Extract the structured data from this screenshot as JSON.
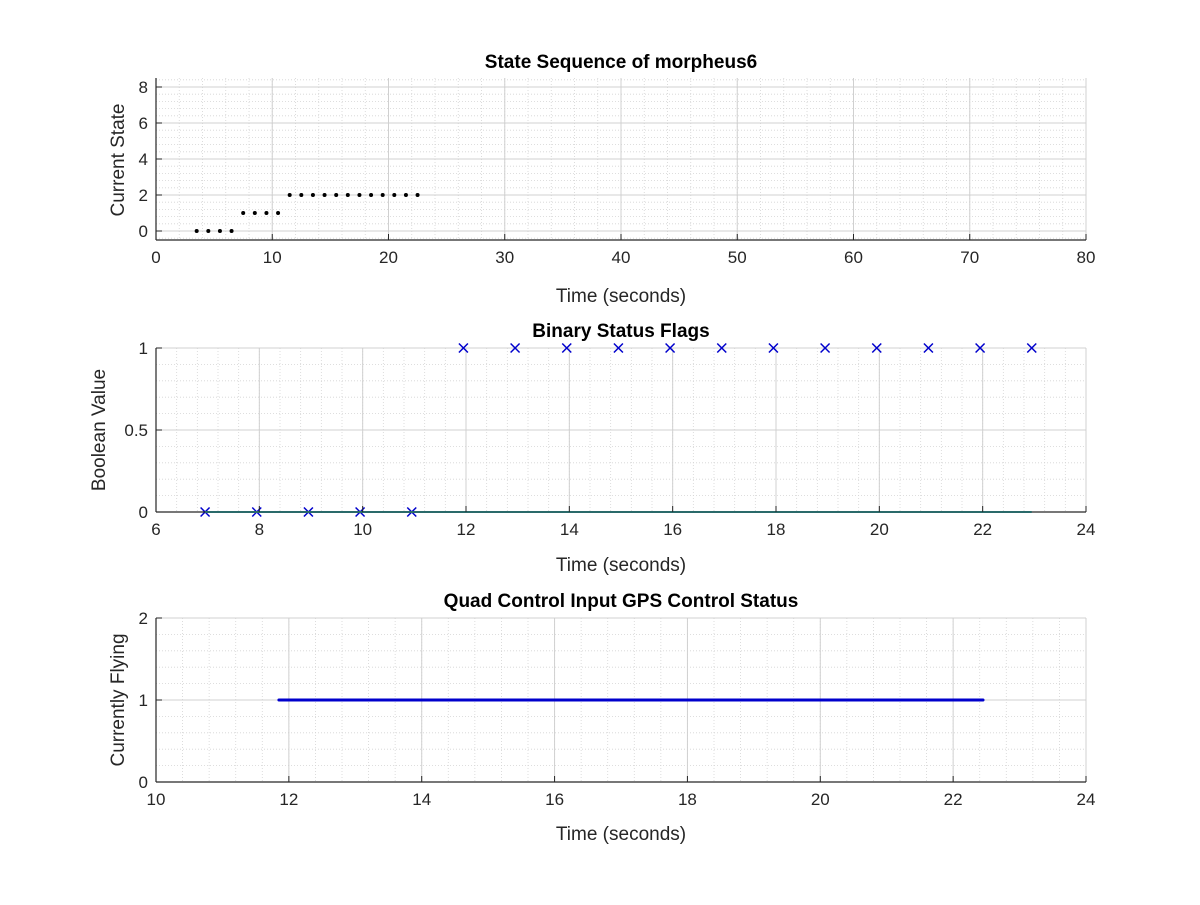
{
  "chart_data": [
    {
      "type": "scatter",
      "title": "State Sequence of morpheus6",
      "xlabel": "Time (seconds)",
      "ylabel": "Current State",
      "xlim": [
        0,
        80
      ],
      "ylim": [
        -0.5,
        8.5
      ],
      "xticks": [
        0,
        10,
        20,
        30,
        40,
        50,
        60,
        70,
        80
      ],
      "yticks": [
        0,
        2,
        4,
        6,
        8
      ],
      "xtick_labels": [
        "0",
        "10",
        "20",
        "30",
        "40",
        "50",
        "60",
        "70",
        "80"
      ],
      "ytick_labels": [
        "0",
        "2",
        "4",
        "6",
        "8"
      ],
      "grid": true,
      "minor_grid": true,
      "series": [
        {
          "marker": "dot",
          "color": "#000000",
          "x": [
            3.5,
            4.5,
            5.5,
            6.5,
            7.5,
            8.5,
            9.5,
            10.5,
            11.5,
            12.5,
            13.5,
            14.5,
            15.5,
            16.5,
            17.5,
            18.5,
            19.5,
            20.5,
            21.5,
            22.5
          ],
          "y": [
            0,
            0,
            0,
            0,
            1,
            1,
            1,
            1,
            2,
            2,
            2,
            2,
            2,
            2,
            2,
            2,
            2,
            2,
            2,
            2
          ]
        }
      ]
    },
    {
      "type": "scatter",
      "title": "Binary Status Flags",
      "xlabel": "Time (seconds)",
      "ylabel": "Boolean Value",
      "xlim": [
        6,
        24
      ],
      "ylim": [
        0,
        1
      ],
      "xticks": [
        6,
        8,
        10,
        12,
        14,
        16,
        18,
        20,
        22,
        24
      ],
      "yticks": [
        0,
        0.5,
        1
      ],
      "xtick_labels": [
        "6",
        "8",
        "10",
        "12",
        "14",
        "16",
        "18",
        "20",
        "22",
        "24"
      ],
      "ytick_labels": [
        "0",
        "0.5",
        "1"
      ],
      "grid": true,
      "minor_grid": true,
      "series": [
        {
          "marker": "x",
          "color": "#0000cc",
          "x": [
            6.95,
            7.95,
            8.95,
            9.95,
            10.95,
            11.95,
            12.95,
            13.95,
            14.95,
            15.95,
            16.95,
            17.95,
            18.95,
            19.95,
            20.95,
            21.95,
            22.95
          ],
          "y": [
            0,
            0,
            0,
            0,
            0,
            1,
            1,
            1,
            1,
            1,
            1,
            1,
            1,
            1,
            1,
            1,
            1
          ]
        },
        {
          "marker": "line",
          "color": "#33dddd",
          "x": [
            6.95,
            22.95
          ],
          "y": [
            0,
            0
          ]
        }
      ]
    },
    {
      "type": "line",
      "title": "Quad Control Input GPS Control Status",
      "xlabel": "Time (seconds)",
      "ylabel": "Currently Flying",
      "xlim": [
        10,
        24
      ],
      "ylim": [
        0,
        2
      ],
      "xticks": [
        10,
        12,
        14,
        16,
        18,
        20,
        22,
        24
      ],
      "yticks": [
        0,
        1,
        2
      ],
      "xtick_labels": [
        "10",
        "12",
        "14",
        "16",
        "18",
        "20",
        "22",
        "24"
      ],
      "ytick_labels": [
        "0",
        "1",
        "2"
      ],
      "grid": true,
      "minor_grid": true,
      "series": [
        {
          "marker": "dot-line",
          "color": "#0000cc",
          "x": [
            11.85,
            22.45
          ],
          "y": [
            1,
            1
          ]
        }
      ]
    }
  ]
}
